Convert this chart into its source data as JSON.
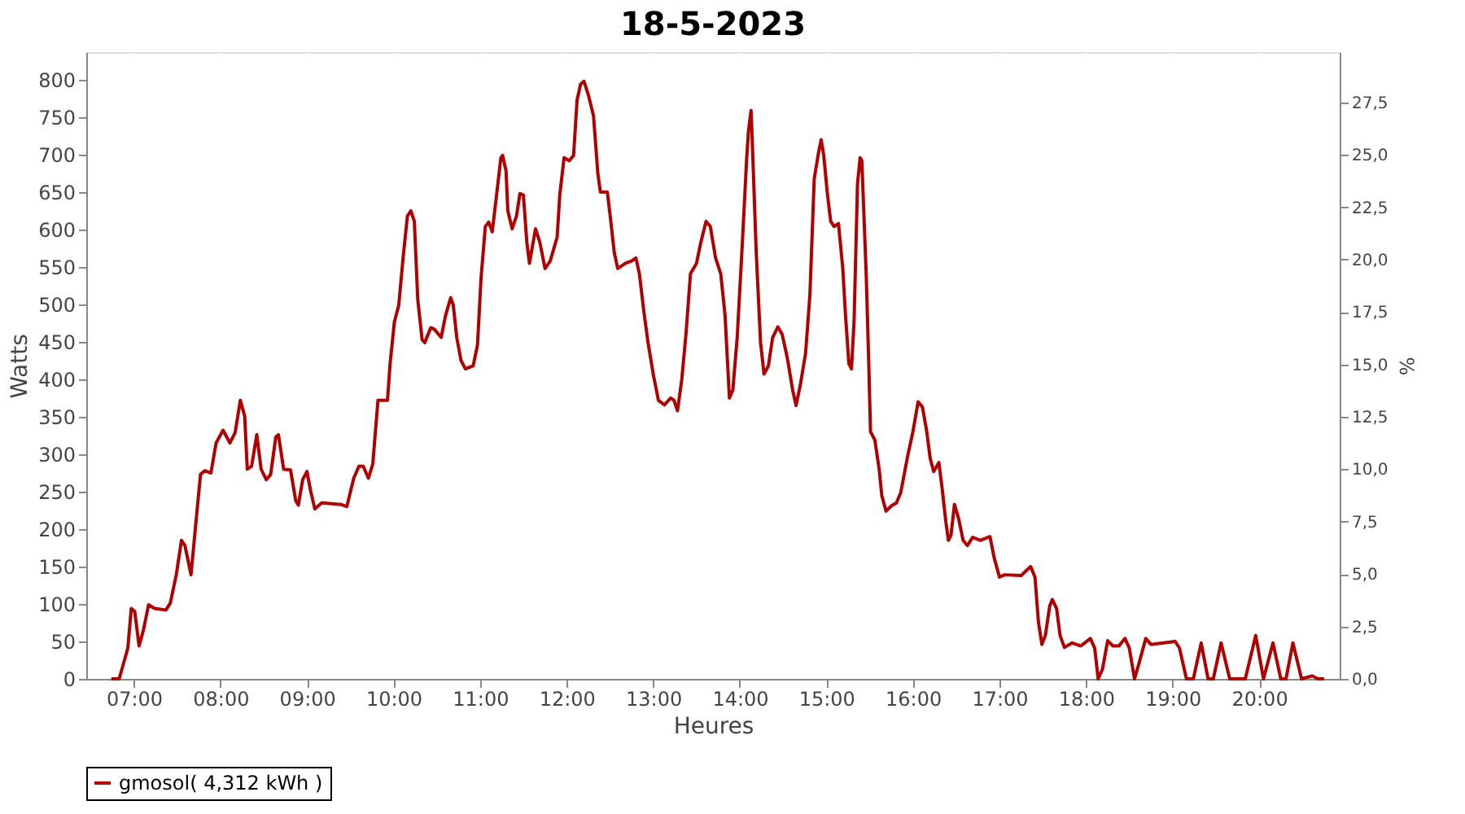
{
  "chart_data": {
    "type": "line",
    "title": "18-5-2023",
    "xlabel": "Heures",
    "ylabel": "Watts",
    "y2label": "%",
    "x": [
      6.74,
      6.83,
      6.93,
      6.97,
      7.01,
      7.06,
      7.11,
      7.17,
      7.24,
      7.37,
      7.42,
      7.49,
      7.55,
      7.59,
      7.66,
      7.72,
      7.77,
      7.82,
      7.89,
      7.95,
      8.03,
      8.11,
      8.17,
      8.23,
      8.28,
      8.31,
      8.36,
      8.42,
      8.47,
      8.53,
      8.58,
      8.64,
      8.67,
      8.73,
      8.81,
      8.87,
      8.9,
      8.95,
      9.0,
      9.04,
      9.09,
      9.17,
      9.39,
      9.46,
      9.54,
      9.6,
      9.65,
      9.71,
      9.76,
      9.82,
      9.87,
      9.93,
      9.96,
      10.01,
      10.06,
      10.11,
      10.16,
      10.2,
      10.24,
      10.28,
      10.33,
      10.36,
      10.43,
      10.47,
      10.55,
      10.6,
      10.66,
      10.69,
      10.73,
      10.78,
      10.83,
      10.92,
      10.97,
      11.01,
      11.06,
      11.1,
      11.14,
      11.19,
      11.24,
      11.26,
      11.3,
      11.32,
      11.37,
      11.42,
      11.46,
      11.5,
      11.54,
      11.57,
      11.64,
      11.69,
      11.75,
      11.81,
      11.89,
      11.92,
      11.97,
      12.03,
      12.08,
      12.12,
      12.16,
      12.2,
      12.25,
      12.31,
      12.36,
      12.39,
      12.47,
      12.51,
      12.55,
      12.59,
      12.68,
      12.75,
      12.8,
      12.84,
      12.89,
      12.94,
      13.0,
      13.06,
      13.13,
      13.2,
      13.24,
      13.28,
      13.33,
      13.38,
      13.43,
      13.5,
      13.55,
      13.61,
      13.66,
      13.72,
      13.78,
      13.83,
      13.88,
      13.92,
      13.97,
      14.03,
      14.08,
      14.1,
      14.13,
      14.14,
      14.19,
      14.24,
      14.28,
      14.33,
      14.38,
      14.44,
      14.49,
      14.55,
      14.61,
      14.65,
      14.7,
      14.76,
      14.81,
      14.86,
      14.91,
      14.94,
      14.97,
      15.01,
      15.05,
      15.09,
      15.14,
      15.19,
      15.22,
      15.26,
      15.29,
      15.32,
      15.36,
      15.39,
      15.41,
      15.46,
      15.49,
      15.51,
      15.56,
      15.61,
      15.64,
      15.69,
      15.75,
      15.81,
      15.86,
      15.94,
      16.0,
      16.06,
      16.11,
      16.16,
      16.2,
      16.24,
      16.3,
      16.34,
      16.38,
      16.41,
      16.44,
      16.48,
      16.53,
      16.58,
      16.63,
      16.69,
      16.78,
      16.89,
      16.94,
      17.0,
      17.06,
      17.25,
      17.36,
      17.41,
      17.45,
      17.49,
      17.53,
      17.58,
      17.61,
      17.66,
      17.7,
      17.75,
      17.84,
      17.94,
      18.05,
      18.1,
      18.14,
      18.19,
      18.25,
      18.31,
      18.38,
      18.45,
      18.5,
      18.56,
      18.61,
      18.69,
      18.75,
      19.03,
      19.08,
      19.16,
      19.24,
      19.33,
      19.41,
      19.47,
      19.56,
      19.66,
      19.84,
      19.96,
      20.05,
      20.16,
      20.25,
      20.31,
      20.39,
      20.49,
      20.61,
      20.68,
      20.75
    ],
    "series": [
      {
        "name": "gmosol( 4,312 kWh )",
        "color": "#b00000",
        "values": [
          0,
          0,
          41,
          94,
          90,
          44,
          65,
          99,
          94,
          92,
          101,
          139,
          185,
          178,
          139,
          213,
          273,
          278,
          275,
          315,
          332,
          315,
          329,
          372,
          351,
          280,
          284,
          326,
          280,
          266,
          273,
          323,
          326,
          280,
          279,
          238,
          232,
          266,
          277,
          252,
          227,
          235,
          233,
          230,
          268,
          284,
          284,
          268,
          287,
          372,
          372,
          372,
          421,
          477,
          499,
          562,
          618,
          625,
          611,
          506,
          453,
          449,
          469,
          467,
          456,
          485,
          509,
          499,
          456,
          425,
          414,
          418,
          446,
          534,
          604,
          610,
          597,
          646,
          696,
          699,
          678,
          625,
          601,
          618,
          648,
          646,
          583,
          555,
          601,
          583,
          548,
          558,
          590,
          646,
          696,
          692,
          699,
          773,
          794,
          798,
          780,
          752,
          675,
          650,
          650,
          611,
          569,
          548,
          555,
          558,
          562,
          541,
          492,
          449,
          407,
          372,
          366,
          375,
          372,
          358,
          400,
          463,
          541,
          555,
          583,
          611,
          604,
          562,
          541,
          485,
          375,
          386,
          456,
          583,
          696,
          731,
          759,
          731,
          569,
          449,
          407,
          418,
          456,
          470,
          460,
          428,
          386,
          365,
          393,
          435,
          513,
          668,
          703,
          720,
          699,
          650,
          611,
          604,
          608,
          548,
          488,
          421,
          414,
          477,
          661,
          696,
          692,
          541,
          421,
          330,
          319,
          280,
          245,
          224,
          231,
          235,
          249,
          298,
          330,
          370,
          363,
          330,
          294,
          277,
          289,
          252,
          210,
          185,
          192,
          233,
          213,
          185,
          178,
          189,
          185,
          190,
          161,
          136,
          139,
          138,
          150,
          136,
          76,
          46,
          58,
          97,
          106,
          94,
          58,
          42,
          48,
          44,
          54,
          41,
          0,
          13,
          51,
          44,
          44,
          54,
          41,
          0,
          20,
          54,
          46,
          50,
          41,
          0,
          0,
          48,
          0,
          0,
          48,
          0,
          0,
          58,
          0,
          48,
          0,
          0,
          48,
          0,
          4,
          0,
          0
        ]
      }
    ],
    "xlim": [
      6.45,
      20.93
    ],
    "xticks": [
      {
        "value": 7,
        "label": "07:00"
      },
      {
        "value": 8,
        "label": "08:00"
      },
      {
        "value": 9,
        "label": "09:00"
      },
      {
        "value": 10,
        "label": "10:00"
      },
      {
        "value": 11,
        "label": "11:00"
      },
      {
        "value": 12,
        "label": "12:00"
      },
      {
        "value": 13,
        "label": "13:00"
      },
      {
        "value": 14,
        "label": "14:00"
      },
      {
        "value": 15,
        "label": "15:00"
      },
      {
        "value": 16,
        "label": "16:00"
      },
      {
        "value": 17,
        "label": "17:00"
      },
      {
        "value": 18,
        "label": "18:00"
      },
      {
        "value": 19,
        "label": "19:00"
      },
      {
        "value": 20,
        "label": "20:00"
      }
    ],
    "ylim": [
      0,
      837
    ],
    "yticks": [
      0,
      50,
      100,
      150,
      200,
      250,
      300,
      350,
      400,
      450,
      500,
      550,
      600,
      650,
      700,
      750,
      800
    ],
    "y2lim": [
      0,
      29.9
    ],
    "y2ticks": [
      {
        "value": 0,
        "label": "0,0"
      },
      {
        "value": 2.5,
        "label": "2,5"
      },
      {
        "value": 5,
        "label": "5,0"
      },
      {
        "value": 7.5,
        "label": "7,5"
      },
      {
        "value": 10,
        "label": "10,0"
      },
      {
        "value": 12.5,
        "label": "12,5"
      },
      {
        "value": 15,
        "label": "15,0"
      },
      {
        "value": 17.5,
        "label": "17,5"
      },
      {
        "value": 20,
        "label": "20,0"
      },
      {
        "value": 22.5,
        "label": "22,5"
      },
      {
        "value": 25,
        "label": "25,0"
      },
      {
        "value": 27.5,
        "label": "27,5"
      }
    ],
    "grid": true,
    "legend": "bottom",
    "line_style": "solid",
    "marker": "none"
  }
}
